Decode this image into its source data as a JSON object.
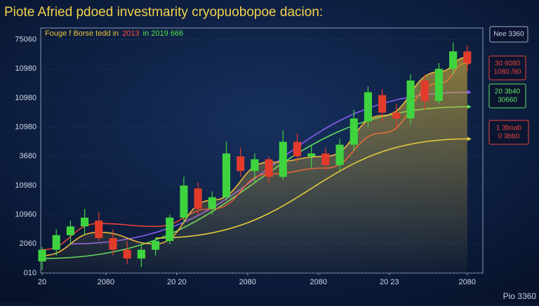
{
  "chart_data": {
    "type": "candlestick",
    "title": "Piote Afried pdoed investmarity cryopuobopoe dacion:",
    "legend_text": [
      {
        "text": "Fouge f Borse tedd in",
        "color": "#e8c23a"
      },
      {
        "text": "2013",
        "color": "#ff4a3a"
      },
      {
        "text": "in 2019 666",
        "color": "#4ee04e"
      }
    ],
    "x": [
      0,
      2,
      4,
      6,
      8,
      10,
      12,
      14,
      16,
      18,
      20,
      22,
      24,
      26,
      28,
      30,
      32,
      34,
      36,
      38,
      40,
      42,
      44,
      46,
      48,
      50,
      52,
      54,
      56,
      58,
      60
    ],
    "open": [
      0.4,
      0.8,
      1.3,
      1.6,
      1.8,
      1.2,
      0.8,
      0.5,
      0.8,
      1.1,
      1.9,
      2.9,
      2.2,
      2.6,
      4.0,
      3.5,
      3.9,
      3.3,
      4.5,
      4.0,
      4.1,
      3.7,
      4.4,
      5.2,
      6.1,
      5.5,
      5.3,
      6.6,
      5.9,
      7.0,
      7.6
    ],
    "high": [
      0.9,
      1.5,
      1.8,
      2.2,
      2.1,
      1.5,
      1.1,
      1.0,
      1.2,
      2.0,
      3.3,
      3.1,
      2.8,
      4.5,
      4.3,
      4.1,
      4.0,
      4.9,
      4.8,
      4.4,
      4.3,
      4.6,
      5.6,
      6.4,
      6.3,
      5.8,
      6.8,
      6.8,
      7.2,
      7.9,
      7.8
    ],
    "low": [
      0.1,
      0.6,
      1.0,
      1.3,
      1.1,
      0.6,
      0.3,
      0.2,
      0.6,
      1.0,
      1.7,
      2.0,
      2.0,
      2.5,
      3.3,
      3.1,
      3.1,
      3.2,
      3.8,
      3.6,
      3.5,
      3.5,
      4.2,
      5.0,
      5.2,
      4.9,
      5.1,
      5.6,
      5.8,
      6.8,
      6.9
    ],
    "close": [
      0.8,
      1.3,
      1.6,
      1.9,
      1.2,
      0.8,
      0.5,
      0.8,
      1.1,
      1.9,
      3.0,
      2.2,
      2.6,
      4.1,
      3.5,
      3.9,
      3.3,
      4.5,
      4.0,
      4.1,
      3.7,
      4.4,
      5.3,
      6.2,
      5.5,
      5.3,
      6.6,
      5.9,
      7.0,
      7.6,
      7.2
    ],
    "up_color": "#3fd43f",
    "down_color": "#e23b2c",
    "lines": [
      {
        "color": "#5fe05f",
        "x": [
          0,
          60
        ],
        "values": [
          0.5,
          5.7
        ]
      },
      {
        "color": "#8a5cf0",
        "x": [
          4,
          60
        ],
        "values": [
          1.0,
          6.2
        ]
      },
      {
        "color": "#e8d23a",
        "x": [
          16,
          60
        ],
        "values": [
          1.2,
          4.6
        ]
      },
      {
        "color": "#e8423a",
        "x": [
          0,
          8,
          16,
          24,
          32,
          40,
          48,
          56,
          60
        ],
        "values": [
          0.8,
          1.7,
          1.6,
          2.2,
          3.4,
          3.6,
          4.8,
          6.5,
          7.2
        ]
      },
      {
        "color": "#f0b83a",
        "x": [
          0,
          8,
          16,
          24,
          32,
          40,
          48,
          56,
          60
        ],
        "values": [
          0.6,
          1.4,
          1.0,
          2.5,
          3.8,
          4.0,
          5.4,
          6.9,
          7.4
        ],
        "area": true
      }
    ],
    "xlim": [
      -0.2,
      62.2
    ],
    "ylim": [
      0,
      8.4
    ],
    "xticks": [
      {
        "value": 0,
        "label": "20"
      },
      {
        "value": 9,
        "label": "2080"
      },
      {
        "value": 19,
        "label": "20 20"
      },
      {
        "value": 29,
        "label": "2080"
      },
      {
        "value": 39,
        "label": "2080"
      },
      {
        "value": 49,
        "label": "20 23"
      },
      {
        "value": 60,
        "label": "2080"
      }
    ],
    "yticks": [
      {
        "value": 0,
        "label": "010"
      },
      {
        "value": 1,
        "label": "2060"
      },
      {
        "value": 2,
        "label": "10960"
      },
      {
        "value": 3,
        "label": "10980"
      },
      {
        "value": 4,
        "label": "3680"
      },
      {
        "value": 5,
        "label": "10980"
      },
      {
        "value": 6,
        "label": "10980"
      },
      {
        "value": 7,
        "label": "10980"
      },
      {
        "value": 8,
        "label": "75060"
      }
    ],
    "grid": true,
    "annotations": [
      {
        "lines": [
          "Nee 3360"
        ],
        "color": "#9fb0c8"
      },
      {
        "lines": [
          "30 6080",
          "1080 /80"
        ],
        "color": "#e8423a"
      },
      {
        "lines": [
          "20 3b40",
          "30660"
        ],
        "color": "#5fe05f"
      },
      {
        "lines": [
          "1 3boab",
          "0 3bb0"
        ],
        "color": "#e8423a"
      }
    ],
    "footer": "Pio 3360"
  }
}
